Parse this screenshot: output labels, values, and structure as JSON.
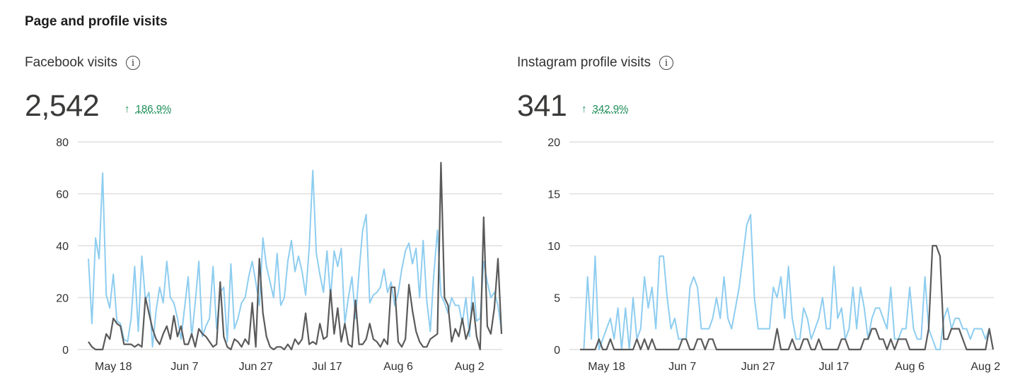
{
  "section_title": "Page and profile visits",
  "chart_data": [
    {
      "type": "line",
      "title": "Facebook visits",
      "total": "2,542",
      "change": "186.9%",
      "change_arrow": "↑",
      "info_icon": "info-icon",
      "ylim": [
        0,
        80
      ],
      "yticks": [
        0,
        20,
        40,
        60,
        80
      ],
      "xtick_labels": [
        "May 18",
        "Jun 7",
        "Jun 27",
        "Jul 17",
        "Aug 6",
        "Aug 2"
      ],
      "xtick_days": [
        7,
        27,
        47,
        67,
        87,
        107
      ],
      "grid": true,
      "series": [
        {
          "color": "#8ecdf0",
          "values": [
            35,
            10,
            43,
            35,
            68,
            21,
            16,
            29,
            11,
            10,
            4,
            3,
            12,
            32,
            7,
            36,
            19,
            22,
            1,
            15,
            24,
            18,
            34,
            20,
            18,
            12,
            4,
            16,
            28,
            5,
            18,
            34,
            5,
            9,
            12,
            32,
            8,
            22,
            24,
            3,
            33,
            8,
            12,
            18,
            20,
            28,
            34,
            26,
            17,
            43,
            32,
            26,
            20,
            37,
            17,
            20,
            34,
            42,
            30,
            36,
            30,
            21,
            39,
            69,
            37,
            29,
            22,
            38,
            20,
            38,
            32,
            39,
            10,
            20,
            28,
            12,
            30,
            46,
            52,
            18,
            21,
            22,
            24,
            31,
            22,
            26,
            17,
            22,
            31,
            38,
            41,
            33,
            39,
            20,
            42,
            19,
            7,
            29,
            46,
            21,
            18,
            14,
            20,
            17,
            17,
            10,
            20,
            5,
            28,
            11,
            12,
            34,
            26,
            20,
            22,
            17,
            7
          ]
        },
        {
          "color": "#5a5a5a",
          "values": [
            3,
            1,
            0,
            0,
            0,
            6,
            4,
            12,
            10,
            9,
            2,
            2,
            2,
            1,
            2,
            1,
            20,
            14,
            8,
            4,
            2,
            6,
            9,
            4,
            13,
            5,
            9,
            2,
            2,
            6,
            1,
            8,
            6,
            5,
            3,
            1,
            2,
            26,
            5,
            1,
            0,
            4,
            3,
            1,
            4,
            2,
            18,
            1,
            35,
            14,
            5,
            1,
            0,
            1,
            1,
            0,
            2,
            0,
            4,
            2,
            4,
            14,
            2,
            3,
            2,
            10,
            4,
            5,
            23,
            6,
            16,
            3,
            10,
            2,
            1,
            19,
            2,
            2,
            4,
            10,
            4,
            3,
            1,
            4,
            2,
            24,
            24,
            3,
            1,
            4,
            25,
            15,
            7,
            3,
            1,
            1,
            4,
            5,
            6,
            72,
            20,
            17,
            3,
            8,
            5,
            12,
            4,
            8,
            18,
            5,
            0,
            51,
            9,
            6,
            16,
            35,
            6
          ]
        }
      ]
    },
    {
      "type": "line",
      "title": "Instagram profile visits",
      "total": "341",
      "change": "342.9%",
      "change_arrow": "↑",
      "info_icon": "info-icon",
      "ylim": [
        0,
        20
      ],
      "yticks": [
        0,
        5,
        10,
        15,
        20
      ],
      "xtick_labels": [
        "May 18",
        "Jun 7",
        "Jun 27",
        "Jul 17",
        "Aug 6",
        "Aug 2"
      ],
      "xtick_days": [
        7,
        27,
        47,
        67,
        87,
        107
      ],
      "grid": true,
      "series": [
        {
          "color": "#8ecdf0",
          "values": [
            0,
            0,
            7,
            1,
            9,
            0,
            1,
            2,
            3,
            1,
            4,
            0,
            4,
            0,
            5,
            1,
            2,
            7,
            4,
            6,
            2,
            9,
            9,
            5,
            2,
            3,
            1,
            1,
            1,
            6,
            7,
            6,
            2,
            2,
            2,
            3,
            5,
            3,
            7,
            3,
            2,
            4,
            6,
            9,
            12,
            13,
            5,
            2,
            2,
            2,
            2,
            6,
            5,
            7,
            3,
            8,
            3,
            1,
            1,
            4,
            3,
            1,
            2,
            3,
            5,
            2,
            2,
            8,
            3,
            4,
            1,
            2,
            6,
            2,
            6,
            4,
            1,
            3,
            4,
            4,
            3,
            2,
            6,
            1,
            1,
            2,
            2,
            6,
            2,
            1,
            1,
            7,
            2,
            1,
            0,
            0,
            3,
            4,
            2,
            3,
            3,
            2,
            2,
            1,
            2,
            2,
            2,
            1,
            2,
            0
          ]
        },
        {
          "color": "#5a5a5a",
          "values": [
            0,
            0,
            0,
            0,
            0,
            1,
            0,
            0,
            1,
            0,
            0,
            0,
            0,
            0,
            0,
            1,
            0,
            1,
            0,
            1,
            0,
            0,
            0,
            0,
            0,
            0,
            0,
            1,
            1,
            0,
            0,
            1,
            1,
            0,
            1,
            1,
            0,
            0,
            0,
            0,
            0,
            0,
            0,
            0,
            0,
            0,
            0,
            0,
            0,
            0,
            0,
            0,
            2,
            0,
            0,
            0,
            1,
            0,
            0,
            1,
            1,
            0,
            0,
            1,
            0,
            0,
            0,
            0,
            0,
            1,
            1,
            0,
            0,
            0,
            0,
            1,
            1,
            2,
            2,
            1,
            1,
            0,
            1,
            0,
            1,
            1,
            1,
            0,
            0,
            0,
            0,
            0,
            2,
            10,
            10,
            9,
            1,
            1,
            2,
            2,
            2,
            1,
            0,
            0,
            0,
            0,
            0,
            0,
            2,
            0
          ]
        }
      ]
    }
  ]
}
